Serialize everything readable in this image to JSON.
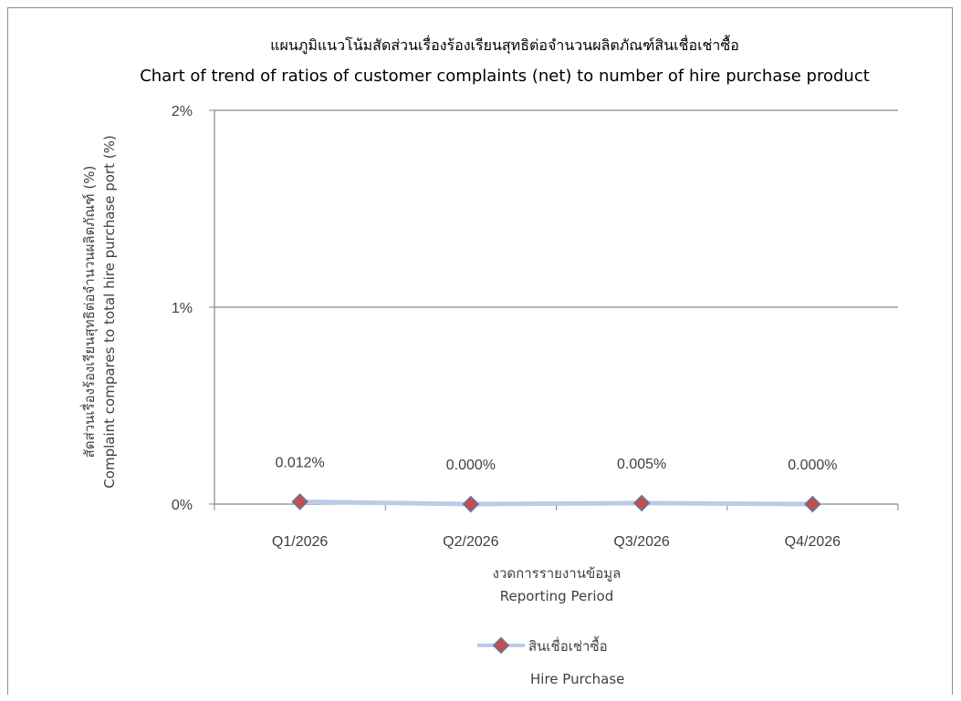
{
  "chart_data": {
    "type": "line",
    "title_line1": "แผนภูมิแนวโน้มสัดส่วนเรื่องร้องเรียนสุทธิต่อจำนวนผลิตภัณฑ์สินเชื่อเช่าซื้อ",
    "title_line2": "Chart of trend of ratios of customer complaints (net) to number of hire purchase product",
    "categories": [
      "Q1/2026",
      "Q2/2026",
      "Q3/2026",
      "Q4/2026"
    ],
    "series": [
      {
        "name": "สินเชื่อเช่าซื้อ",
        "name_en": "Hire Purchase",
        "values": [
          0.012,
          0.0,
          0.005,
          0.0
        ],
        "data_labels": [
          "0.012%",
          "0.000%",
          "0.005%",
          "0.000%"
        ]
      }
    ],
    "xlabel_line1": "งวดการรายงานข้อมูล",
    "xlabel_line2": "Reporting Period",
    "ylabel_line1": "สัดส่วนเรื่องร้องเรียนสุทธิต่อจำนวนผลิตภัณฑ์ (%)",
    "ylabel_line2": "Complaint compares to total hire purchase port (%)",
    "yticks": [
      {
        "value": 0,
        "label": "0%"
      },
      {
        "value": 1,
        "label": "1%"
      },
      {
        "value": 2,
        "label": "2%"
      }
    ],
    "ylim": [
      0,
      2
    ],
    "grid": true,
    "legend_position": "bottom",
    "colors": {
      "line": "#b9cde5",
      "marker_fill": "#c0504d",
      "marker_stroke": "#4f81bd",
      "grid": "#868686",
      "axis": "#868686"
    }
  }
}
